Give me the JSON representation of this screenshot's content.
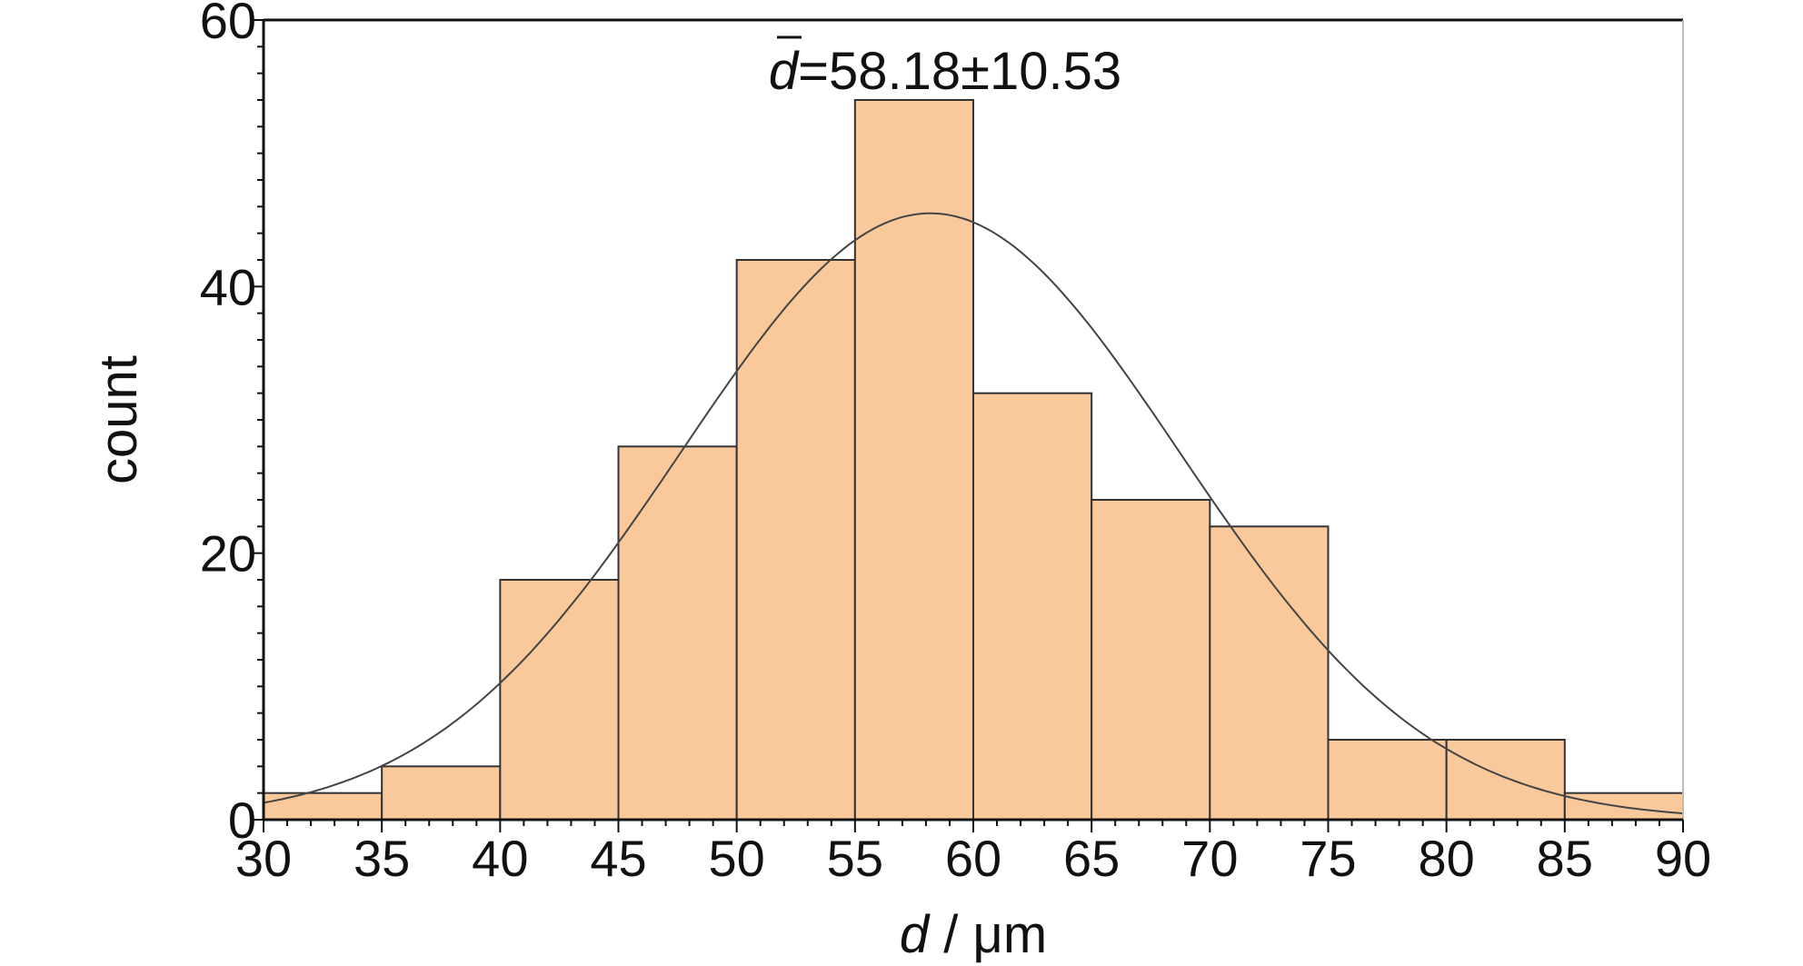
{
  "chart_data": {
    "type": "bar",
    "subtype": "histogram",
    "bins": [
      {
        "start": 30,
        "end": 35,
        "count": 2
      },
      {
        "start": 35,
        "end": 40,
        "count": 4
      },
      {
        "start": 40,
        "end": 45,
        "count": 18
      },
      {
        "start": 45,
        "end": 50,
        "count": 28
      },
      {
        "start": 50,
        "end": 55,
        "count": 42
      },
      {
        "start": 55,
        "end": 60,
        "count": 54
      },
      {
        "start": 60,
        "end": 65,
        "count": 32
      },
      {
        "start": 65,
        "end": 70,
        "count": 24
      },
      {
        "start": 70,
        "end": 75,
        "count": 22
      },
      {
        "start": 75,
        "end": 80,
        "count": 6
      },
      {
        "start": 80,
        "end": 85,
        "count": 6
      },
      {
        "start": 85,
        "end": 90,
        "count": 2
      }
    ],
    "fit_curve": {
      "type": "normal",
      "mean": 58.18,
      "sd": 10.53,
      "peak": 45.5
    },
    "annotation": {
      "symbol": "d",
      "text": "=58.18±10.53"
    },
    "xlabel": {
      "symbol": "d",
      "unit": " / μm"
    },
    "ylabel": "count",
    "xlim": [
      30,
      90
    ],
    "ylim": [
      0,
      60
    ],
    "xticks": [
      "30",
      "35",
      "40",
      "45",
      "50",
      "55",
      "60",
      "65",
      "70",
      "75",
      "80",
      "85",
      "90"
    ],
    "yticks": [
      "0",
      "20",
      "40",
      "60"
    ],
    "grid": false,
    "colors": {
      "bar_fill": "#f9c99b",
      "bar_edge": "#333333",
      "curve": "#444444",
      "axis": "#111111"
    }
  }
}
